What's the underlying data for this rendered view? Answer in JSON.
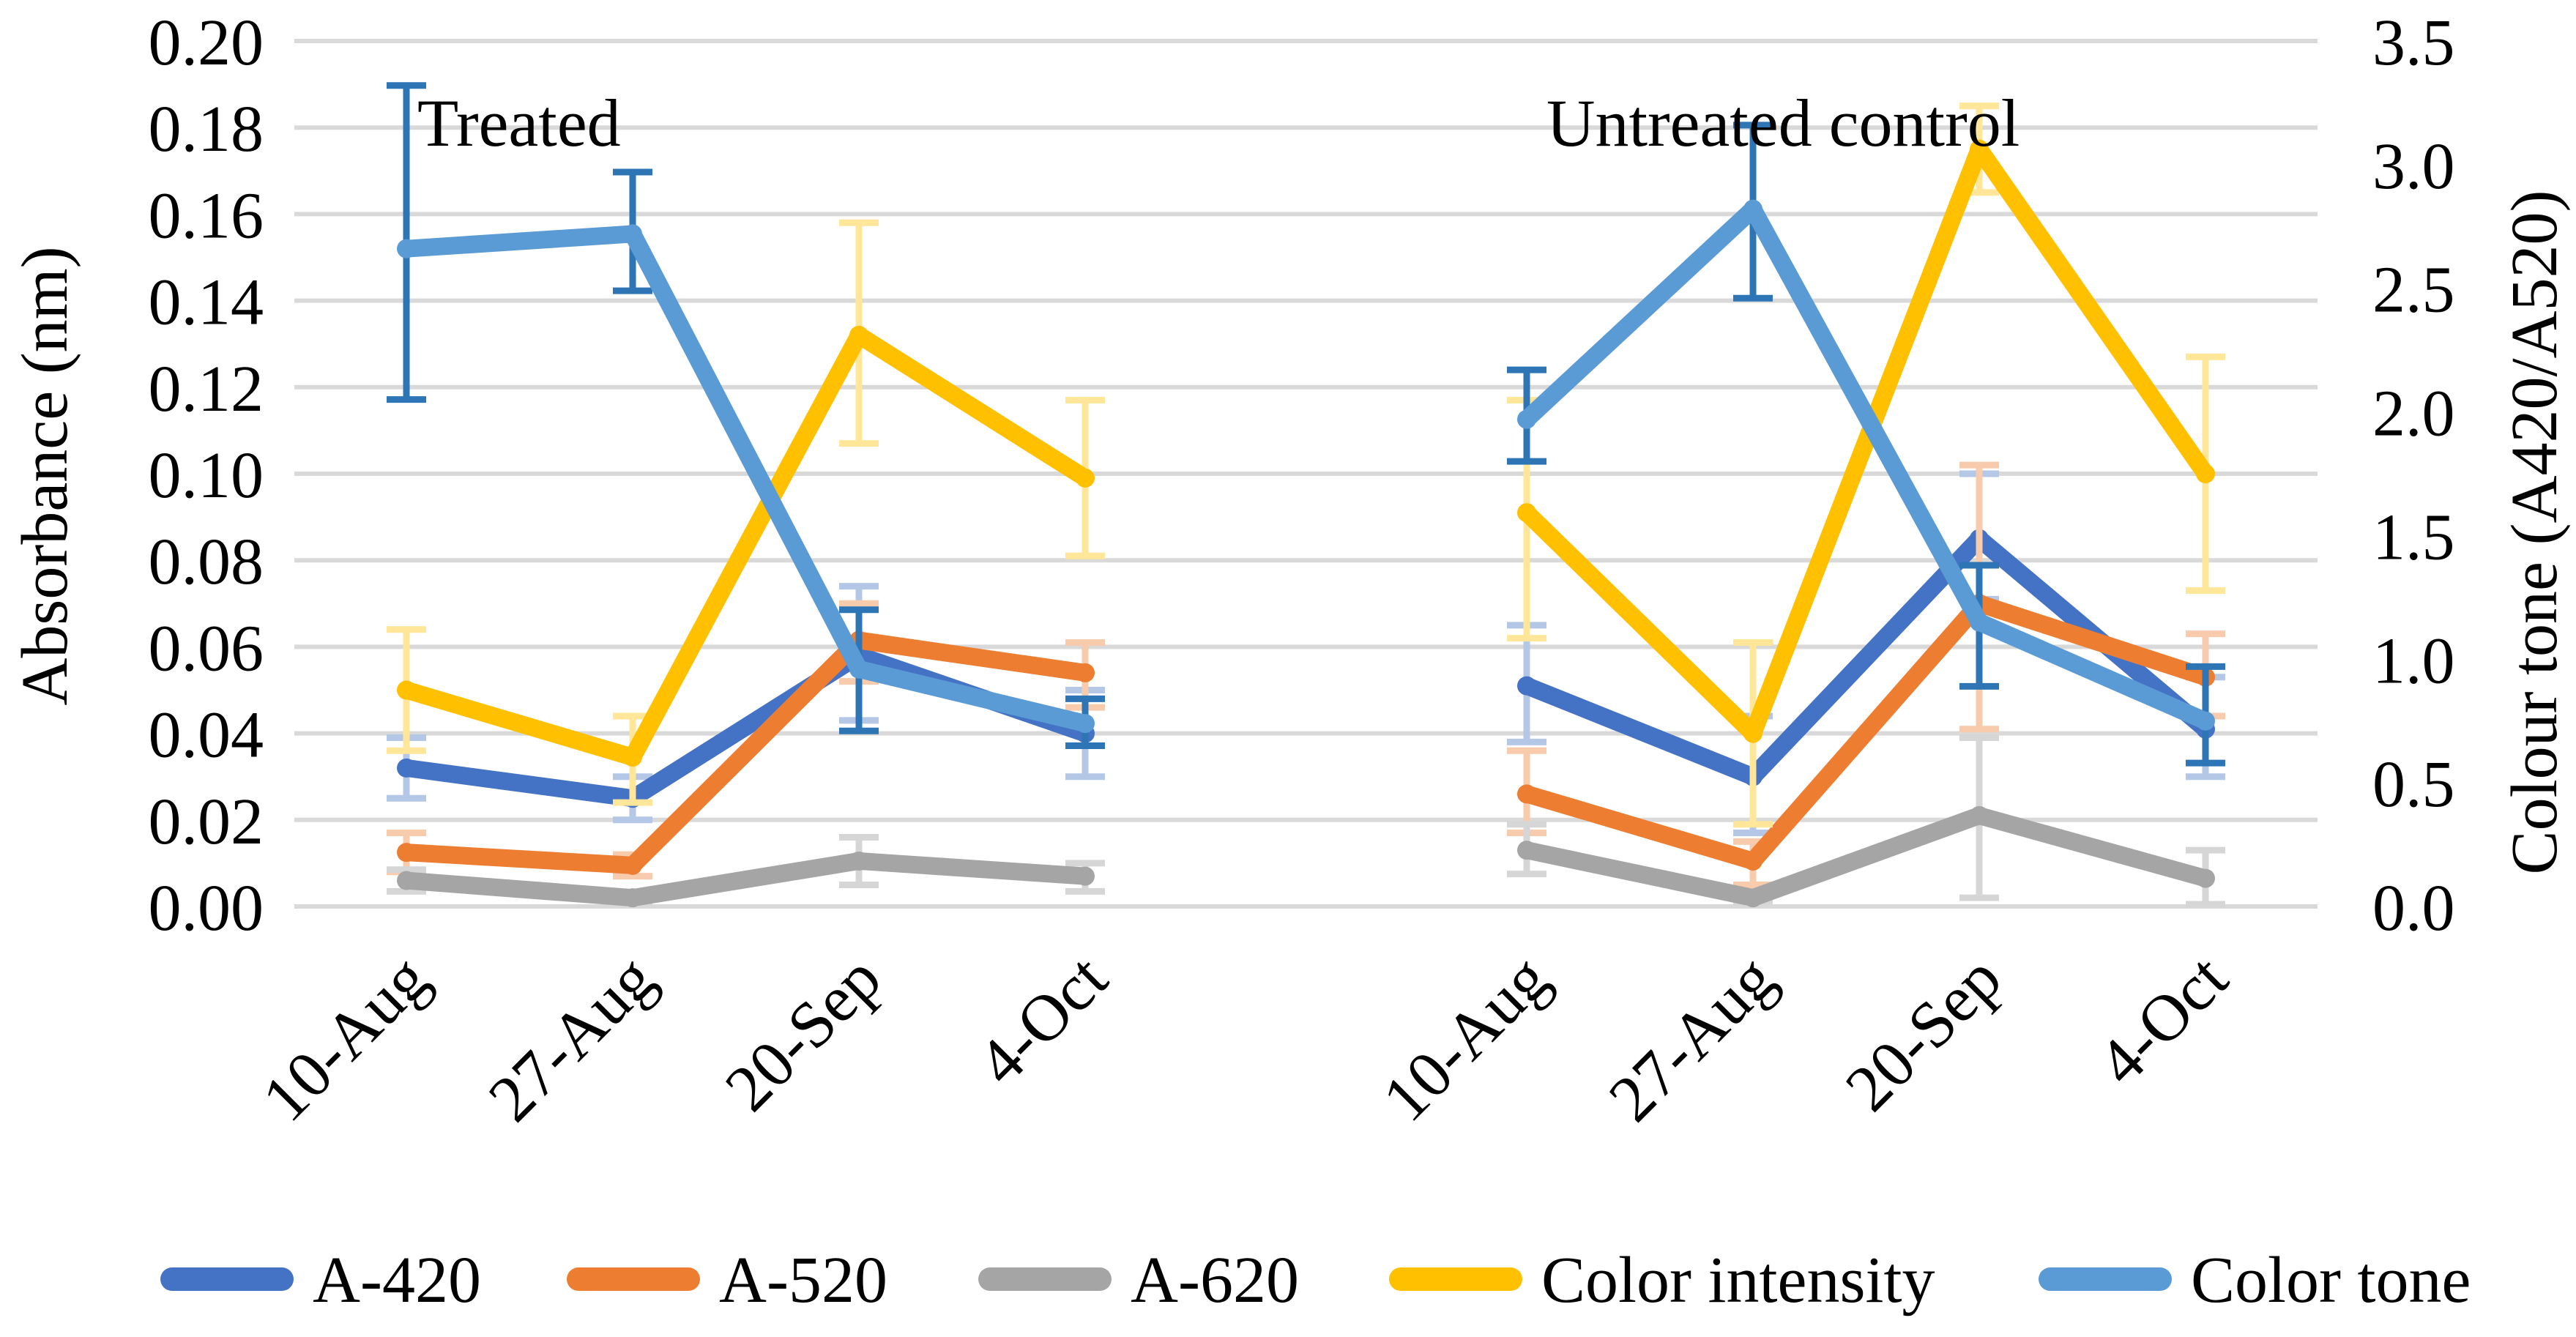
{
  "figure": {
    "background": "#FFFFFF"
  },
  "chart_data": {
    "type": "line",
    "title": "",
    "categories": [
      "10-Aug",
      "27-Aug",
      "20-Sep",
      "4-Oct"
    ],
    "groups": [
      {
        "key": "treated",
        "label": "Treated"
      },
      {
        "key": "untreated",
        "label": "Untreated control"
      }
    ],
    "axes": {
      "left": {
        "label": "Absorbance (nm)",
        "min": 0.0,
        "max": 0.2,
        "tick_labels": [
          "0.00",
          "0.02",
          "0.04",
          "0.06",
          "0.08",
          "0.10",
          "0.12",
          "0.14",
          "0.16",
          "0.18",
          "0.20"
        ]
      },
      "right": {
        "label": "Colour tone (A420/A520)",
        "min": 0.0,
        "max": 3.5,
        "tick_labels": [
          "0.0",
          "0.5",
          "1.0",
          "1.5",
          "2.0",
          "2.5",
          "3.0",
          "3.5"
        ]
      },
      "grid": true,
      "grid_color": "#D9D9D9"
    },
    "series": [
      {
        "name": "A-420",
        "axis": "left",
        "color": "#4472C4",
        "error_color": "#B4C7E7",
        "treated": {
          "values": [
            0.032,
            0.025,
            0.058,
            0.04
          ],
          "err_low": [
            0.025,
            0.02,
            0.043,
            0.03
          ],
          "err_high": [
            0.039,
            0.03,
            0.074,
            0.05
          ]
        },
        "untreated": {
          "values": [
            0.051,
            0.03,
            0.085,
            0.041
          ],
          "err_low": [
            0.038,
            0.017,
            0.071,
            0.03
          ],
          "err_high": [
            0.065,
            0.044,
            0.1,
            0.053
          ]
        }
      },
      {
        "name": "A-520",
        "axis": "left",
        "color": "#ED7D31",
        "error_color": "#F8CBAD",
        "treated": {
          "values": [
            0.0125,
            0.0095,
            0.0615,
            0.054
          ],
          "err_low": [
            0.008,
            0.007,
            0.052,
            0.046
          ],
          "err_high": [
            0.017,
            0.012,
            0.07,
            0.061
          ]
        },
        "untreated": {
          "values": [
            0.026,
            0.0105,
            0.07,
            0.053
          ],
          "err_low": [
            0.017,
            0.005,
            0.041,
            0.044
          ],
          "err_high": [
            0.036,
            0.015,
            0.102,
            0.063
          ]
        }
      },
      {
        "name": "A-620",
        "axis": "left",
        "color": "#A5A5A5",
        "error_color": "#D6D6D6",
        "treated": {
          "values": [
            0.006,
            0.002,
            0.0105,
            0.007
          ],
          "err_low": [
            0.0035,
            0.001,
            0.005,
            0.0035
          ],
          "err_high": [
            0.0085,
            0.003,
            0.016,
            0.01
          ]
        },
        "untreated": {
          "values": [
            0.013,
            0.002,
            0.021,
            0.0065
          ],
          "err_low": [
            0.0075,
            0.001,
            0.002,
            0.0005
          ],
          "err_high": [
            0.019,
            0.003,
            0.039,
            0.013
          ]
        }
      },
      {
        "name": "Color intensity",
        "axis": "left",
        "color": "#FFC000",
        "error_color": "#FFE699",
        "treated": {
          "values": [
            0.05,
            0.0345,
            0.132,
            0.099
          ],
          "err_low": [
            0.036,
            0.024,
            0.107,
            0.081
          ],
          "err_high": [
            0.064,
            0.044,
            0.158,
            0.117
          ]
        },
        "untreated": {
          "values": [
            0.091,
            0.04,
            0.175,
            0.1
          ],
          "err_low": [
            0.062,
            0.019,
            0.165,
            0.073
          ],
          "err_high": [
            0.117,
            0.061,
            0.185,
            0.127
          ]
        }
      },
      {
        "name": "Color tone",
        "axis": "right",
        "color": "#5B9BD5",
        "error_color": "#2E75B6",
        "treated": {
          "values": [
            2.66,
            2.72,
            0.96,
            0.74
          ],
          "err_low": [
            2.05,
            2.49,
            0.71,
            0.65
          ],
          "err_high": [
            3.32,
            2.97,
            1.2,
            0.84
          ]
        },
        "untreated": {
          "values": [
            1.97,
            2.82,
            1.15,
            0.75
          ],
          "err_low": [
            1.8,
            2.46,
            0.89,
            0.58
          ],
          "err_high": [
            2.17,
            3.16,
            1.38,
            0.97
          ]
        }
      }
    ],
    "legend_position": "bottom"
  }
}
